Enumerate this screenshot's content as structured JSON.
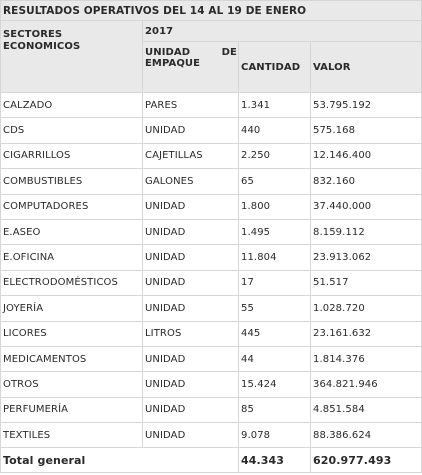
{
  "title": "RESULTADOS OPERATIVOS DEL 14 AL 19 DE ENERO",
  "header": {
    "sectores": "SECTORES ECONOMICOS",
    "year": "2017",
    "unidad_a": "UNIDAD",
    "unidad_de": "DE",
    "unidad_b": "EMPAQUE",
    "cantidad": "CANTIDAD",
    "valor": "VALOR"
  },
  "rows": [
    {
      "sector": "CALZADO",
      "unidad": "PARES",
      "cantidad": "1.341",
      "valor": "53.795.192"
    },
    {
      "sector": "CDS",
      "unidad": "UNIDAD",
      "cantidad": "440",
      "valor": "575.168"
    },
    {
      "sector": "CIGARRILLOS",
      "unidad": "CAJETILLAS",
      "cantidad": "2.250",
      "valor": "12.146.400"
    },
    {
      "sector": "COMBUSTIBLES",
      "unidad": "GALONES",
      "cantidad": "65",
      "valor": "832.160"
    },
    {
      "sector": "COMPUTADORES",
      "unidad": "UNIDAD",
      "cantidad": "1.800",
      "valor": "37.440.000"
    },
    {
      "sector": "E.ASEO",
      "unidad": "UNIDAD",
      "cantidad": "1.495",
      "valor": "8.159.112"
    },
    {
      "sector": "E.OFICINA",
      "unidad": "UNIDAD",
      "cantidad": "11.804",
      "valor": "23.913.062"
    },
    {
      "sector": "ELECTRODOMÉSTICOS",
      "unidad": "UNIDAD",
      "cantidad": "17",
      "valor": "51.517"
    },
    {
      "sector": "JOYERÍA",
      "unidad": "UNIDAD",
      "cantidad": "55",
      "valor": "1.028.720"
    },
    {
      "sector": "LICORES",
      "unidad": "LITROS",
      "cantidad": "445",
      "valor": "23.161.632"
    },
    {
      "sector": "MEDICAMENTOS",
      "unidad": "UNIDAD",
      "cantidad": "44",
      "valor": "1.814.376"
    },
    {
      "sector": "OTROS",
      "unidad": "UNIDAD",
      "cantidad": "15.424",
      "valor": "364.821.946"
    },
    {
      "sector": "PERFUMERÍA",
      "unidad": "UNIDAD",
      "cantidad": "85",
      "valor": "4.851.584"
    },
    {
      "sector": "TEXTILES",
      "unidad": "UNIDAD",
      "cantidad": "9.078",
      "valor": "88.386.624"
    }
  ],
  "total": {
    "label": "Total general",
    "cantidad": "44.343",
    "valor": "620.977.493"
  },
  "colors": {
    "header_bg": "#e9e9e9",
    "border": "#d6d6d6",
    "text": "#2a2a2a"
  }
}
